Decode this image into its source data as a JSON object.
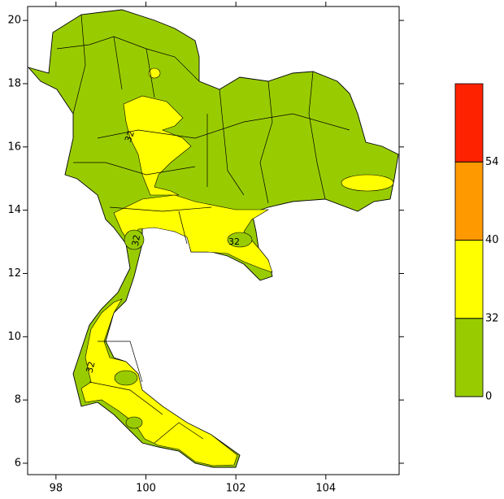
{
  "map": {
    "xlim": [
      97.37,
      105.63
    ],
    "ylim": [
      5.64,
      20.44
    ],
    "xticks": [
      98,
      100,
      102,
      104
    ],
    "yticks": [
      6,
      8,
      10,
      12,
      14,
      16,
      18,
      20
    ],
    "contour_labels": [
      "32",
      "32",
      "32",
      "32"
    ]
  },
  "colorbar": {
    "ticks": [
      0,
      32,
      40,
      54
    ],
    "colors": [
      "#99cc00",
      "#ffff00",
      "#ff9900",
      "#ff2200"
    ]
  }
}
